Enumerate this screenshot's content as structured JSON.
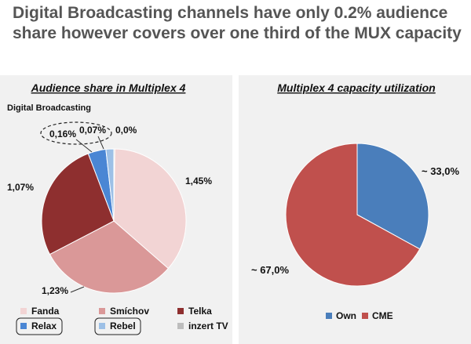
{
  "title": "Digital Broadcasting channels have only 0.2% audience share however covers over one third of the MUX capacity",
  "chart_data": [
    {
      "type": "pie",
      "title": "Audience share in Multiplex 4",
      "subtitle": "Digital Broadcasting",
      "slices": [
        {
          "name": "Fanda",
          "value": 1.45,
          "label": "1,45%",
          "color": "#f2d4d4"
        },
        {
          "name": "Smíchov",
          "value": 1.23,
          "label": "1,23%",
          "color": "#da9898"
        },
        {
          "name": "Telka",
          "value": 1.07,
          "label": "1,07%",
          "color": "#8e2f2f"
        },
        {
          "name": "Relax",
          "value": 0.16,
          "label": "0,16%",
          "color": "#4a86d4"
        },
        {
          "name": "Rebel",
          "value": 0.07,
          "label": "0,07%",
          "color": "#9dc0e6"
        },
        {
          "name": "inzert TV",
          "value": 0.0,
          "label": "0,0%",
          "color": "#bdbdbd"
        }
      ],
      "legend_placement": "bottom",
      "highlighted": [
        "Relax",
        "Rebel"
      ]
    },
    {
      "type": "pie",
      "title": "Multiplex 4 capacity utilization",
      "slices": [
        {
          "name": "Own",
          "value": 33.0,
          "label": "~ 33,0%",
          "color": "#4a7ebb"
        },
        {
          "name": "CME",
          "value": 67.0,
          "label": "~ 67,0%",
          "color": "#c0504d"
        }
      ],
      "legend_placement": "bottom"
    }
  ]
}
